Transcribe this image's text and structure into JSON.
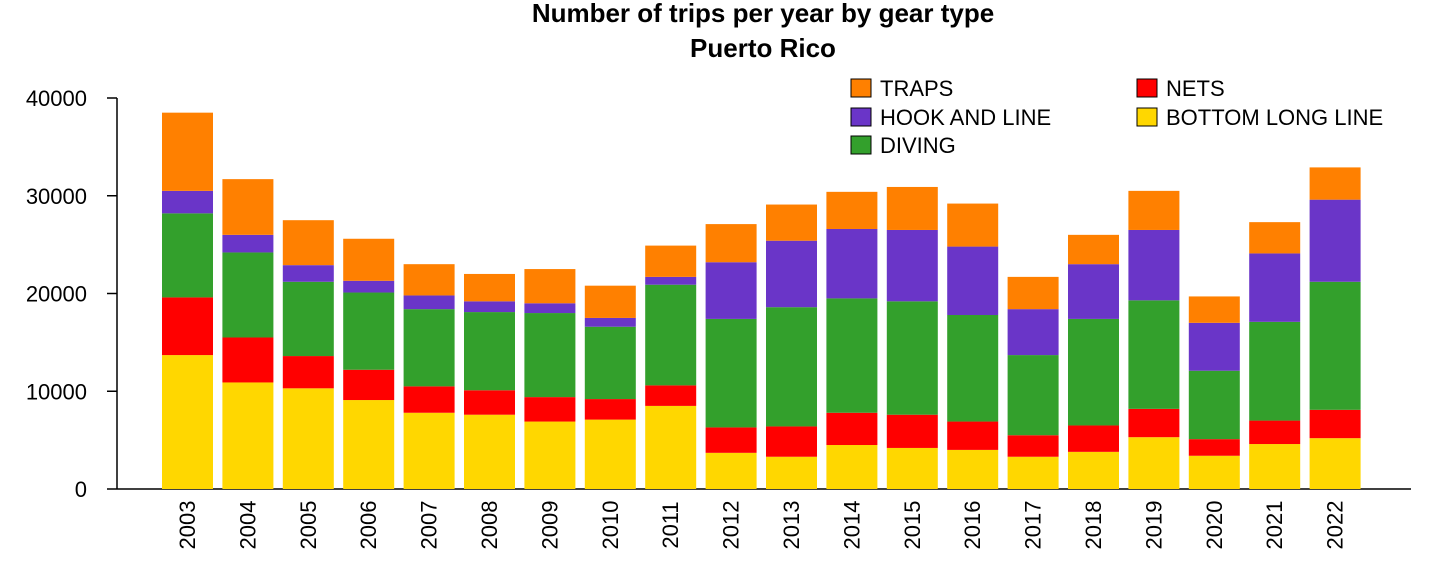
{
  "chart_data": {
    "type": "bar",
    "stacked": true,
    "title": "Number of trips per year by gear type",
    "subtitle": "Puerto Rico",
    "xlabel": "",
    "ylabel": "",
    "ylim": [
      0,
      40000
    ],
    "y_ticks": [
      0,
      10000,
      20000,
      30000,
      40000
    ],
    "categories": [
      "2003",
      "2004",
      "2005",
      "2006",
      "2007",
      "2008",
      "2009",
      "2010",
      "2011",
      "2012",
      "2013",
      "2014",
      "2015",
      "2016",
      "2017",
      "2018",
      "2019",
      "2020",
      "2021",
      "2022"
    ],
    "series": [
      {
        "name": "BOTTOM LONG LINE",
        "color": "#FFD700",
        "values": [
          13700,
          10900,
          10300,
          9100,
          7800,
          7600,
          6900,
          7100,
          8500,
          3700,
          3300,
          4500,
          4200,
          4000,
          3300,
          3800,
          5300,
          3400,
          4600,
          5200
        ]
      },
      {
        "name": "NETS",
        "color": "#FF0000",
        "values": [
          5900,
          4600,
          3300,
          3100,
          2700,
          2500,
          2500,
          2100,
          2100,
          2600,
          3100,
          3300,
          3400,
          2900,
          2200,
          2700,
          2900,
          1700,
          2400,
          2900
        ]
      },
      {
        "name": "DIVING",
        "color": "#33A02C",
        "values": [
          8600,
          8700,
          7600,
          7900,
          7900,
          8000,
          8600,
          7400,
          10300,
          11100,
          12200,
          11700,
          11600,
          10900,
          8200,
          10900,
          11100,
          7000,
          10100,
          13100
        ]
      },
      {
        "name": "HOOK AND LINE",
        "color": "#6A35C8",
        "values": [
          2300,
          1800,
          1700,
          1200,
          1400,
          1100,
          1000,
          900,
          800,
          5800,
          6800,
          7100,
          7300,
          7000,
          4700,
          5600,
          7200,
          4900,
          7000,
          8400
        ]
      },
      {
        "name": "TRAPS",
        "color": "#FF8000",
        "values": [
          8000,
          5700,
          4600,
          4300,
          3200,
          2800,
          3500,
          3300,
          3200,
          3900,
          3700,
          3800,
          4400,
          4400,
          3300,
          3000,
          4000,
          2700,
          3200,
          3300
        ]
      }
    ],
    "legend": {
      "placement": "top-right",
      "columns": [
        [
          "TRAPS",
          "HOOK AND LINE",
          "DIVING"
        ],
        [
          "NETS",
          "BOTTOM LONG LINE"
        ]
      ]
    },
    "grid": false
  }
}
